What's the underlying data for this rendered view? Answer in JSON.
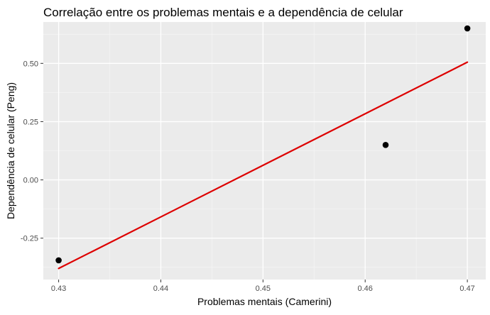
{
  "chart_data": {
    "type": "scatter",
    "title": "Correlação entre os problemas mentais e a dependência de celular",
    "xlabel": "Problemas mentais (Camerini)",
    "ylabel": "Dependência de celular (Peng)",
    "xlim": [
      0.4285,
      0.4718
    ],
    "ylim": [
      -0.4275,
      0.6775
    ],
    "x_ticks": [
      0.43,
      0.44,
      0.45,
      0.46,
      0.47
    ],
    "x_tick_labels": [
      "0.43",
      "0.44",
      "0.45",
      "0.46",
      "0.47"
    ],
    "y_ticks": [
      -0.25,
      0.0,
      0.25,
      0.5
    ],
    "y_tick_labels": [
      "-0.25",
      "0.00",
      "0.25",
      "0.50"
    ],
    "grid": true,
    "legend": "none",
    "points": [
      {
        "x": 0.43,
        "y": -0.345
      },
      {
        "x": 0.462,
        "y": 0.15
      },
      {
        "x": 0.47,
        "y": 0.65
      }
    ],
    "fit_line": {
      "x": [
        0.43,
        0.47
      ],
      "y": [
        -0.38,
        0.505
      ]
    },
    "colors": {
      "panel_background": "#ebebeb",
      "grid_major": "#ffffff",
      "grid_minor": "#f5f5f5",
      "point": "#000000",
      "fit_line": "#dd0000",
      "tick_text": "#4d4d4d",
      "tick_mark": "#333333"
    }
  }
}
